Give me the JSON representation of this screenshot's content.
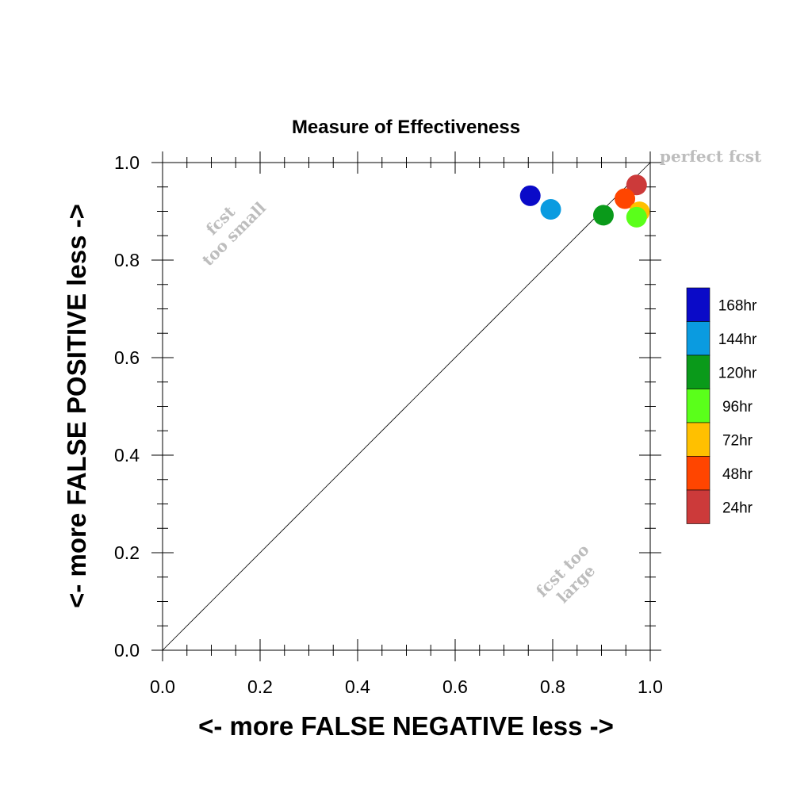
{
  "chart_data": {
    "type": "scatter",
    "title": "Measure of Effectiveness",
    "xlabel": "<- more   FALSE NEGATIVE   less ->",
    "ylabel": "<- more   FALSE POSITIVE   less ->",
    "xlim": [
      0,
      1
    ],
    "ylim": [
      0,
      1
    ],
    "x_ticks": [
      "0.0",
      "0.2",
      "0.4",
      "0.6",
      "0.8",
      "1.0"
    ],
    "y_ticks": [
      "0.0",
      "0.2",
      "0.4",
      "0.6",
      "0.8",
      "1.0"
    ],
    "reference_line": {
      "from": [
        0,
        0
      ],
      "to": [
        1,
        1
      ]
    },
    "grid": false,
    "legend_position": "right",
    "annotations": {
      "perfect": "perfect fcst",
      "too_small_line1": "fcst",
      "too_small_line2": "too small",
      "too_large_line1": "fcst too",
      "too_large_line2": "large"
    },
    "series": [
      {
        "name": "24hr",
        "color": "#cc3a3a",
        "x": 0.972,
        "y": 0.954
      },
      {
        "name": "48hr",
        "color": "#ff4500",
        "x": 0.948,
        "y": 0.926
      },
      {
        "name": "72hr",
        "color": "#ffc000",
        "x": 0.978,
        "y": 0.899
      },
      {
        "name": "96hr",
        "color": "#5aff1a",
        "x": 0.972,
        "y": 0.888
      },
      {
        "name": "120hr",
        "color": "#0a9a1a",
        "x": 0.904,
        "y": 0.892
      },
      {
        "name": "144hr",
        "color": "#0a9be0",
        "x": 0.796,
        "y": 0.904
      },
      {
        "name": "168hr",
        "color": "#0a0ac8",
        "x": 0.754,
        "y": 0.932
      }
    ],
    "legend_order": [
      "168hr",
      "144hr",
      "120hr",
      "96hr",
      "72hr",
      "48hr",
      "24hr"
    ]
  }
}
